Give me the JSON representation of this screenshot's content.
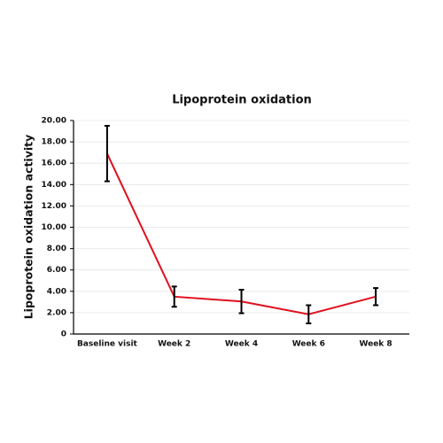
{
  "chart_data": {
    "type": "line",
    "title": "Lipoprotein oxidation",
    "y_label": "Lipoprotein oxidation activity",
    "categories": [
      "Baseline visit",
      "Week 2",
      "Week 4",
      "Week 6",
      "Week 8"
    ],
    "values": [
      16.9,
      3.5,
      3.05,
      1.85,
      3.5
    ],
    "errors": [
      2.6,
      0.95,
      1.1,
      0.85,
      0.8
    ],
    "color": "#e0101e",
    "error_color": "#000000",
    "ylim": [
      0,
      20
    ],
    "yticks": [
      0,
      {
        "value": 2,
        "label": "2.00"
      },
      {
        "value": 4,
        "label": "4.00"
      },
      {
        "value": 6,
        "label": "6.00"
      },
      {
        "value": 8,
        "label": "8.00"
      },
      {
        "value": 10,
        "label": "10.00"
      },
      {
        "value": 12,
        "label": "12.00"
      },
      {
        "value": 14,
        "label": "14.00"
      },
      {
        "value": 16,
        "label": "16.00"
      },
      {
        "value": 18,
        "label": "18.00"
      },
      {
        "value": 20,
        "label": "20.00"
      }
    ],
    "grid": true
  }
}
